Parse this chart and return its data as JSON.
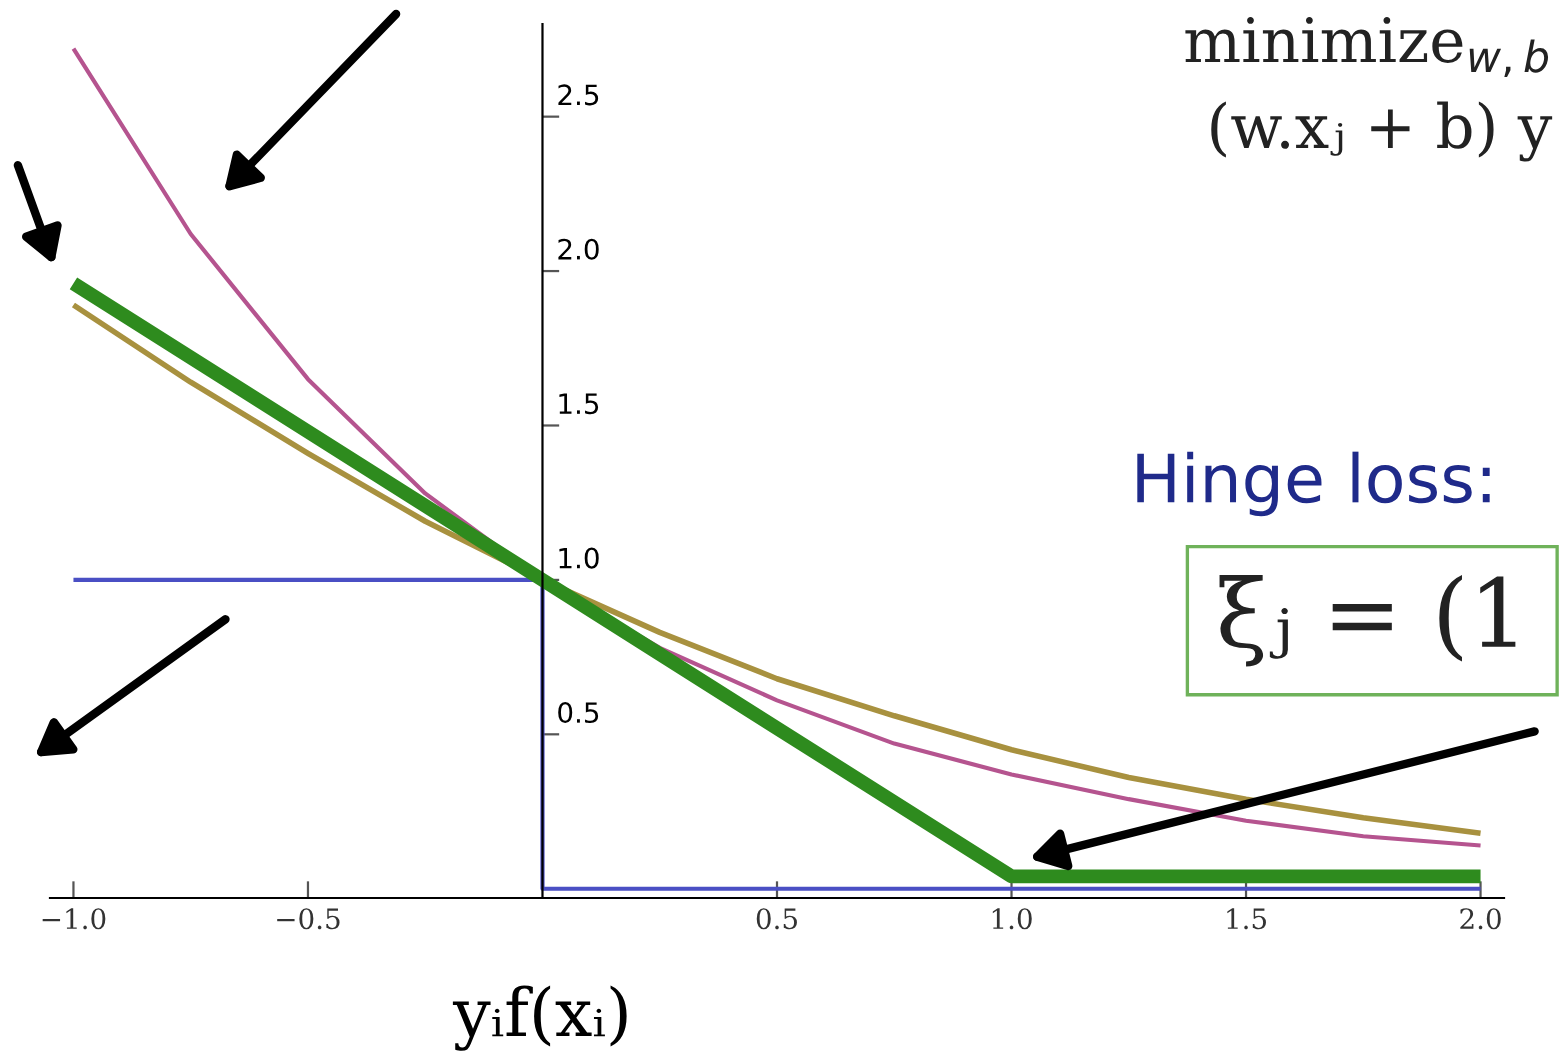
{
  "chart_data": {
    "type": "line",
    "xlabel": "yᵢf(xᵢ)",
    "xlim": [
      -1.05,
      2.05
    ],
    "ylim": [
      -0.03,
      2.8
    ],
    "xticks": [
      {
        "value": -1.0,
        "label": "−1.0"
      },
      {
        "value": -0.5,
        "label": "−0.5"
      },
      {
        "value": 0.5,
        "label": "0.5"
      },
      {
        "value": 1.0,
        "label": "1.0"
      },
      {
        "value": 1.5,
        "label": "1.5"
      },
      {
        "value": 2.0,
        "label": "2.0"
      }
    ],
    "yticks": [
      {
        "value": 0.5,
        "label": "0.5"
      },
      {
        "value": 1.0,
        "label": "1.0"
      },
      {
        "value": 1.5,
        "label": "1.5"
      },
      {
        "value": 2.0,
        "label": "2.0"
      },
      {
        "value": 2.5,
        "label": "2.5"
      }
    ],
    "grid": false,
    "legend": false,
    "marker": "none",
    "line_style": "solid",
    "series": [
      {
        "color": "#b5548f",
        "x": [
          -1,
          -0.75,
          -0.5,
          -0.25,
          0,
          0.25,
          0.5,
          0.75,
          1,
          1.25,
          1.5,
          1.75,
          2
        ],
        "values": [
          2.72,
          2.12,
          1.65,
          1.28,
          1.0,
          0.78,
          0.61,
          0.47,
          0.37,
          0.29,
          0.22,
          0.17,
          0.14
        ]
      },
      {
        "color": "#a8913f",
        "x": [
          -1,
          -0.75,
          -0.5,
          -0.25,
          0,
          0.25,
          0.5,
          0.75,
          1,
          1.25,
          1.5,
          1.75,
          2
        ],
        "values": [
          1.89,
          1.64,
          1.41,
          1.19,
          1.0,
          0.83,
          0.68,
          0.56,
          0.45,
          0.36,
          0.29,
          0.23,
          0.18
        ]
      },
      {
        "color": "#4a4fc4",
        "x": [
          -1,
          0,
          0,
          2
        ],
        "values": [
          1.0,
          1.0,
          0.0,
          0.0
        ]
      },
      {
        "color": "#2e8b1e",
        "x": [
          -1,
          1,
          2
        ],
        "values": [
          1.96,
          0.04,
          0.04
        ]
      }
    ],
    "annotations": [
      "minimize$_{w,b}$",
      "(w.xⱼ + b) y",
      "Hinge loss:",
      "ξⱼ = (1"
    ]
  }
}
